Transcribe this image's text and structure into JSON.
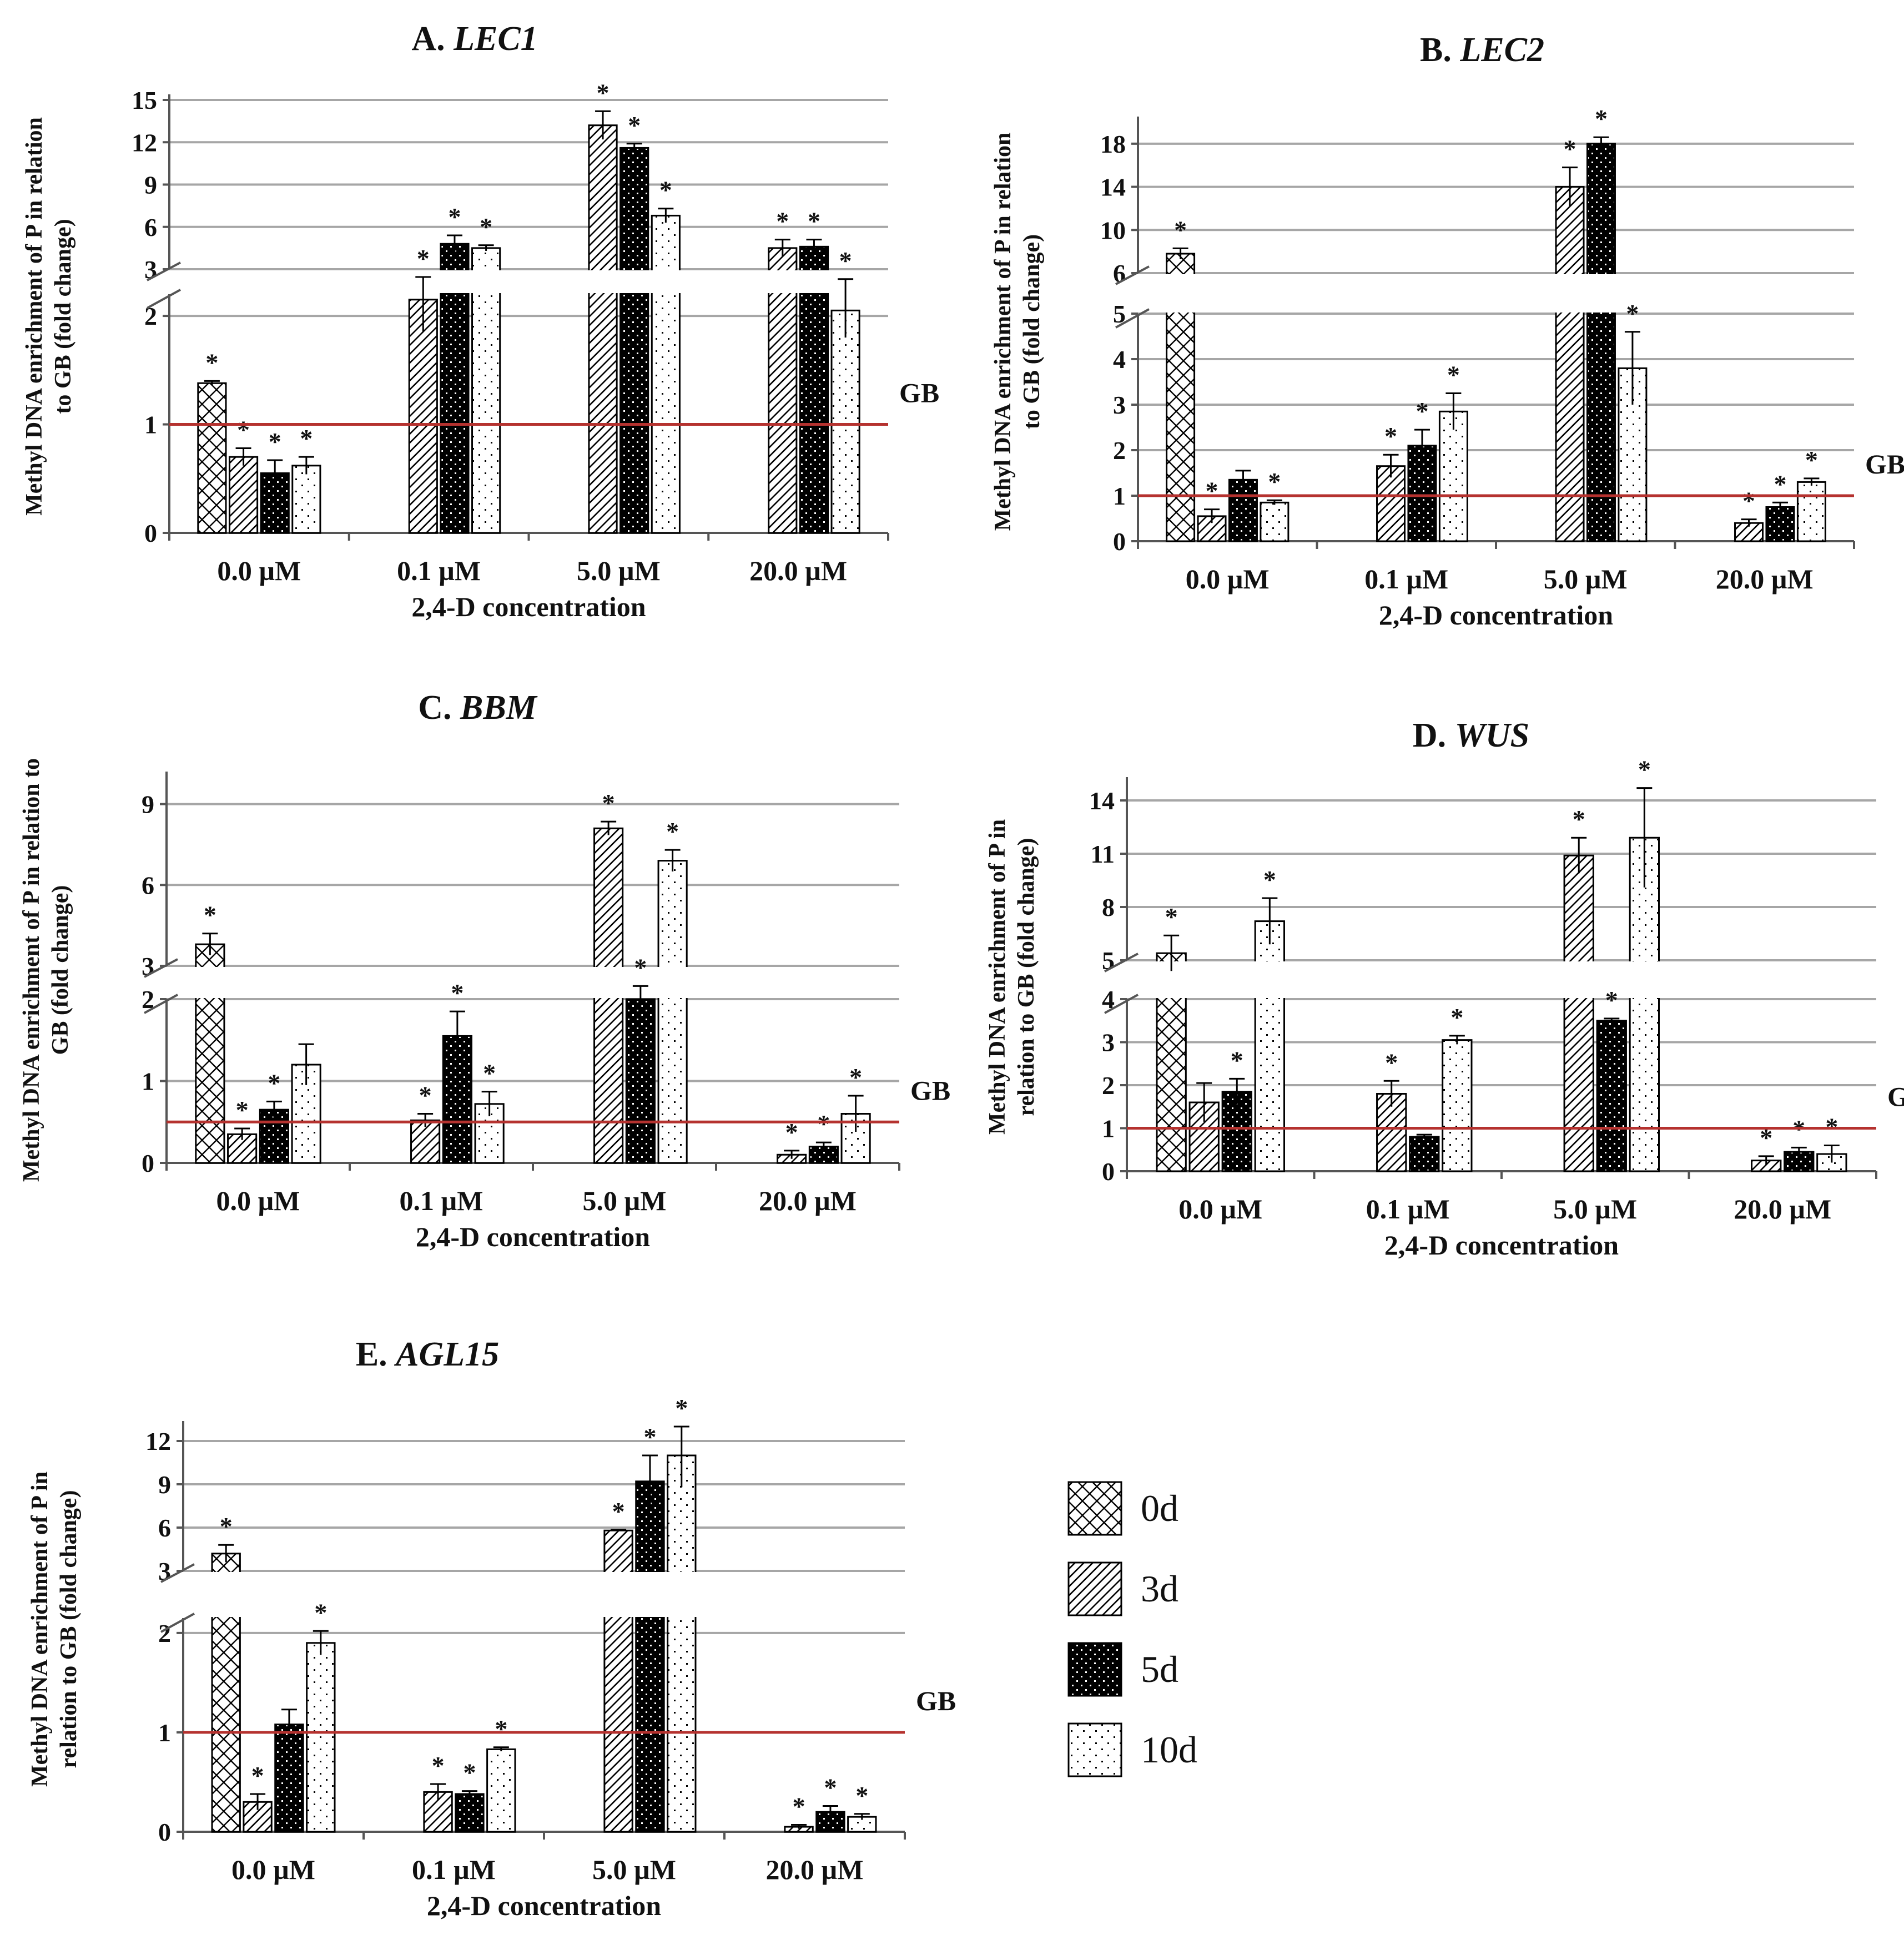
{
  "figure": {
    "legend": [
      {
        "key": "d0",
        "label": "0d"
      },
      {
        "key": "d3",
        "label": "3d"
      },
      {
        "key": "d5",
        "label": "5d"
      },
      {
        "key": "d10",
        "label": "10d"
      }
    ],
    "colors": {
      "reference_line": "#b5322f",
      "grid": "#a6a6a6",
      "bar_stroke": "#000000"
    }
  },
  "chart_data": [
    {
      "id": "A",
      "type": "bar",
      "title_prefix": "A. ",
      "title_gene": "LEC1",
      "ylabel": [
        "Methyl DNA enrichment of P in relation",
        "to GB (fold change)"
      ],
      "xlabel": "2,4-D concentration",
      "categories": [
        "0.0 µM",
        "0.1 µM",
        "5.0 µM",
        "20.0 µM"
      ],
      "axis_break": true,
      "lower_ticks": [
        "0",
        "1",
        "2"
      ],
      "lower_range": [
        0,
        2.2
      ],
      "upper_ticks": [
        "3",
        "6",
        "9",
        "12",
        "15"
      ],
      "upper_range": [
        3,
        15
      ],
      "reference": {
        "label": "GB",
        "value": 1
      },
      "series": [
        {
          "name": "0d",
          "values": [
            1.38,
            null,
            null,
            null
          ],
          "errors": [
            0.02,
            null,
            null,
            null
          ],
          "stars": [
            true,
            false,
            false,
            false
          ]
        },
        {
          "name": "3d",
          "values": [
            0.7,
            2.15,
            13.2,
            4.5
          ],
          "errors": [
            0.08,
            0.3,
            1.0,
            0.6
          ],
          "stars": [
            true,
            true,
            true,
            true
          ]
        },
        {
          "name": "5d",
          "values": [
            0.55,
            4.8,
            11.6,
            4.6
          ],
          "errors": [
            0.12,
            0.6,
            0.3,
            0.5
          ],
          "stars": [
            true,
            true,
            true,
            true
          ]
        },
        {
          "name": "10d",
          "values": [
            0.62,
            4.5,
            6.8,
            2.05
          ],
          "errors": [
            0.08,
            0.2,
            0.5,
            0.25
          ],
          "stars": [
            true,
            true,
            true,
            true
          ]
        }
      ]
    },
    {
      "id": "B",
      "type": "bar",
      "title_prefix": "B. ",
      "title_gene": "LEC2",
      "ylabel": [
        "Methyl DNA enrichment of P in relation",
        "to GB (fold change)"
      ],
      "xlabel": "2,4-D concentration",
      "categories": [
        "0.0 µM",
        "0.1 µM",
        "5.0 µM",
        "20.0 µM"
      ],
      "axis_break": true,
      "lower_ticks": [
        "0",
        "1",
        "2",
        "3",
        "4",
        "5"
      ],
      "lower_range": [
        0,
        5
      ],
      "upper_ticks": [
        "6",
        "10",
        "14",
        "18"
      ],
      "upper_range": [
        6,
        20
      ],
      "reference": {
        "label": "GB",
        "value": 1
      },
      "series": [
        {
          "name": "0d",
          "values": [
            7.8,
            null,
            null,
            null
          ],
          "errors": [
            0.5,
            null,
            null,
            null
          ],
          "stars": [
            true,
            false,
            false,
            false
          ]
        },
        {
          "name": "3d",
          "values": [
            0.55,
            1.65,
            14.0,
            0.4
          ],
          "errors": [
            0.15,
            0.25,
            1.8,
            0.08
          ],
          "stars": [
            true,
            true,
            true,
            true
          ]
        },
        {
          "name": "5d",
          "values": [
            1.35,
            2.1,
            18.0,
            0.75
          ],
          "errors": [
            0.2,
            0.35,
            0.6,
            0.1
          ],
          "stars": [
            false,
            true,
            true,
            true
          ]
        },
        {
          "name": "10d",
          "values": [
            0.85,
            2.85,
            3.8,
            1.3
          ],
          "errors": [
            0.05,
            0.4,
            0.8,
            0.08
          ],
          "stars": [
            true,
            true,
            true,
            true
          ]
        }
      ]
    },
    {
      "id": "C",
      "type": "bar",
      "title_prefix": "C. ",
      "title_gene": "BBM",
      "ylabel": [
        "Methyl DNA enrichment of P in relation to",
        "GB (fold change)"
      ],
      "xlabel": "2,4-D concentration",
      "categories": [
        "0.0 µM",
        "0.1 µM",
        "5.0 µM",
        "20.0 µM"
      ],
      "axis_break": true,
      "lower_ticks": [
        "0",
        "1",
        "2"
      ],
      "lower_range": [
        0,
        2
      ],
      "upper_ticks": [
        "3",
        "6",
        "9"
      ],
      "upper_range": [
        3,
        10
      ],
      "reference": {
        "label": "GB",
        "value": 0.5
      },
      "series": [
        {
          "name": "0d",
          "values": [
            3.8,
            null,
            null,
            null
          ],
          "errors": [
            0.4,
            null,
            null,
            null
          ],
          "stars": [
            true,
            false,
            false,
            false
          ]
        },
        {
          "name": "3d",
          "values": [
            0.35,
            0.52,
            8.1,
            0.1
          ],
          "errors": [
            0.07,
            0.08,
            0.25,
            0.05
          ],
          "stars": [
            true,
            true,
            true,
            true
          ]
        },
        {
          "name": "5d",
          "values": [
            0.65,
            1.55,
            2.0,
            0.2
          ],
          "errors": [
            0.1,
            0.3,
            0.25,
            0.05
          ],
          "stars": [
            true,
            true,
            true,
            true
          ]
        },
        {
          "name": "10d",
          "values": [
            1.2,
            0.72,
            6.9,
            0.6
          ],
          "errors": [
            0.25,
            0.15,
            0.4,
            0.22
          ],
          "stars": [
            false,
            true,
            true,
            true
          ]
        }
      ]
    },
    {
      "id": "D",
      "type": "bar",
      "title_prefix": "D. ",
      "title_gene": "WUS",
      "ylabel": [
        "Methyl DNA enrichment of P in",
        "relation to GB (fold change)"
      ],
      "xlabel": "2,4-D concentration",
      "categories": [
        "0.0 µM",
        "0.1 µM",
        "5.0 µM",
        "20.0 µM"
      ],
      "axis_break": true,
      "lower_ticks": [
        "0",
        "1",
        "2",
        "3",
        "4"
      ],
      "lower_range": [
        0,
        4
      ],
      "upper_ticks": [
        "5",
        "8",
        "11",
        "14"
      ],
      "upper_range": [
        5,
        15
      ],
      "reference": {
        "label": "GB",
        "value": 1
      },
      "series": [
        {
          "name": "0d",
          "values": [
            5.4,
            null,
            null,
            null
          ],
          "errors": [
            1.0,
            null,
            null,
            null
          ],
          "stars": [
            true,
            false,
            false,
            false
          ]
        },
        {
          "name": "3d",
          "values": [
            1.6,
            1.8,
            10.9,
            0.25
          ],
          "errors": [
            0.45,
            0.3,
            1.0,
            0.1
          ],
          "stars": [
            false,
            true,
            true,
            true
          ]
        },
        {
          "name": "5d",
          "values": [
            1.85,
            0.8,
            3.5,
            0.45
          ],
          "errors": [
            0.3,
            0.05,
            0.05,
            0.1
          ],
          "stars": [
            true,
            false,
            true,
            true
          ]
        },
        {
          "name": "10d",
          "values": [
            7.2,
            3.05,
            11.9,
            0.4
          ],
          "errors": [
            1.3,
            0.1,
            2.8,
            0.2
          ],
          "stars": [
            true,
            true,
            true,
            true
          ]
        }
      ]
    },
    {
      "id": "E",
      "type": "bar",
      "title_prefix": "E. ",
      "title_gene": "AGL15",
      "ylabel": [
        "Methyl DNA enrichment of P in",
        "relation to GB (fold change)"
      ],
      "xlabel": "2,4-D concentration",
      "categories": [
        "0.0 µM",
        "0.1 µM",
        "5.0 µM",
        "20.0 µM"
      ],
      "axis_break": true,
      "lower_ticks": [
        "0",
        "1",
        "2"
      ],
      "lower_range": [
        0,
        2.15
      ],
      "upper_ticks": [
        "3",
        "6",
        "9",
        "12"
      ],
      "upper_range": [
        3,
        13
      ],
      "reference": {
        "label": "GB",
        "value": 1
      },
      "series": [
        {
          "name": "0d",
          "values": [
            4.2,
            null,
            null,
            null
          ],
          "errors": [
            0.6,
            null,
            null,
            null
          ],
          "stars": [
            true,
            false,
            false,
            false
          ]
        },
        {
          "name": "3d",
          "values": [
            0.3,
            0.4,
            5.8,
            0.05
          ],
          "errors": [
            0.08,
            0.08,
            0.05,
            0.02
          ],
          "stars": [
            true,
            true,
            true,
            true
          ]
        },
        {
          "name": "5d",
          "values": [
            1.08,
            0.38,
            9.2,
            0.2
          ],
          "errors": [
            0.15,
            0.03,
            1.8,
            0.06
          ],
          "stars": [
            false,
            true,
            true,
            true
          ]
        },
        {
          "name": "10d",
          "values": [
            1.9,
            0.83,
            11.0,
            0.15
          ],
          "errors": [
            0.12,
            0.02,
            2.2,
            0.03
          ],
          "stars": [
            true,
            true,
            true,
            true
          ]
        }
      ]
    }
  ]
}
